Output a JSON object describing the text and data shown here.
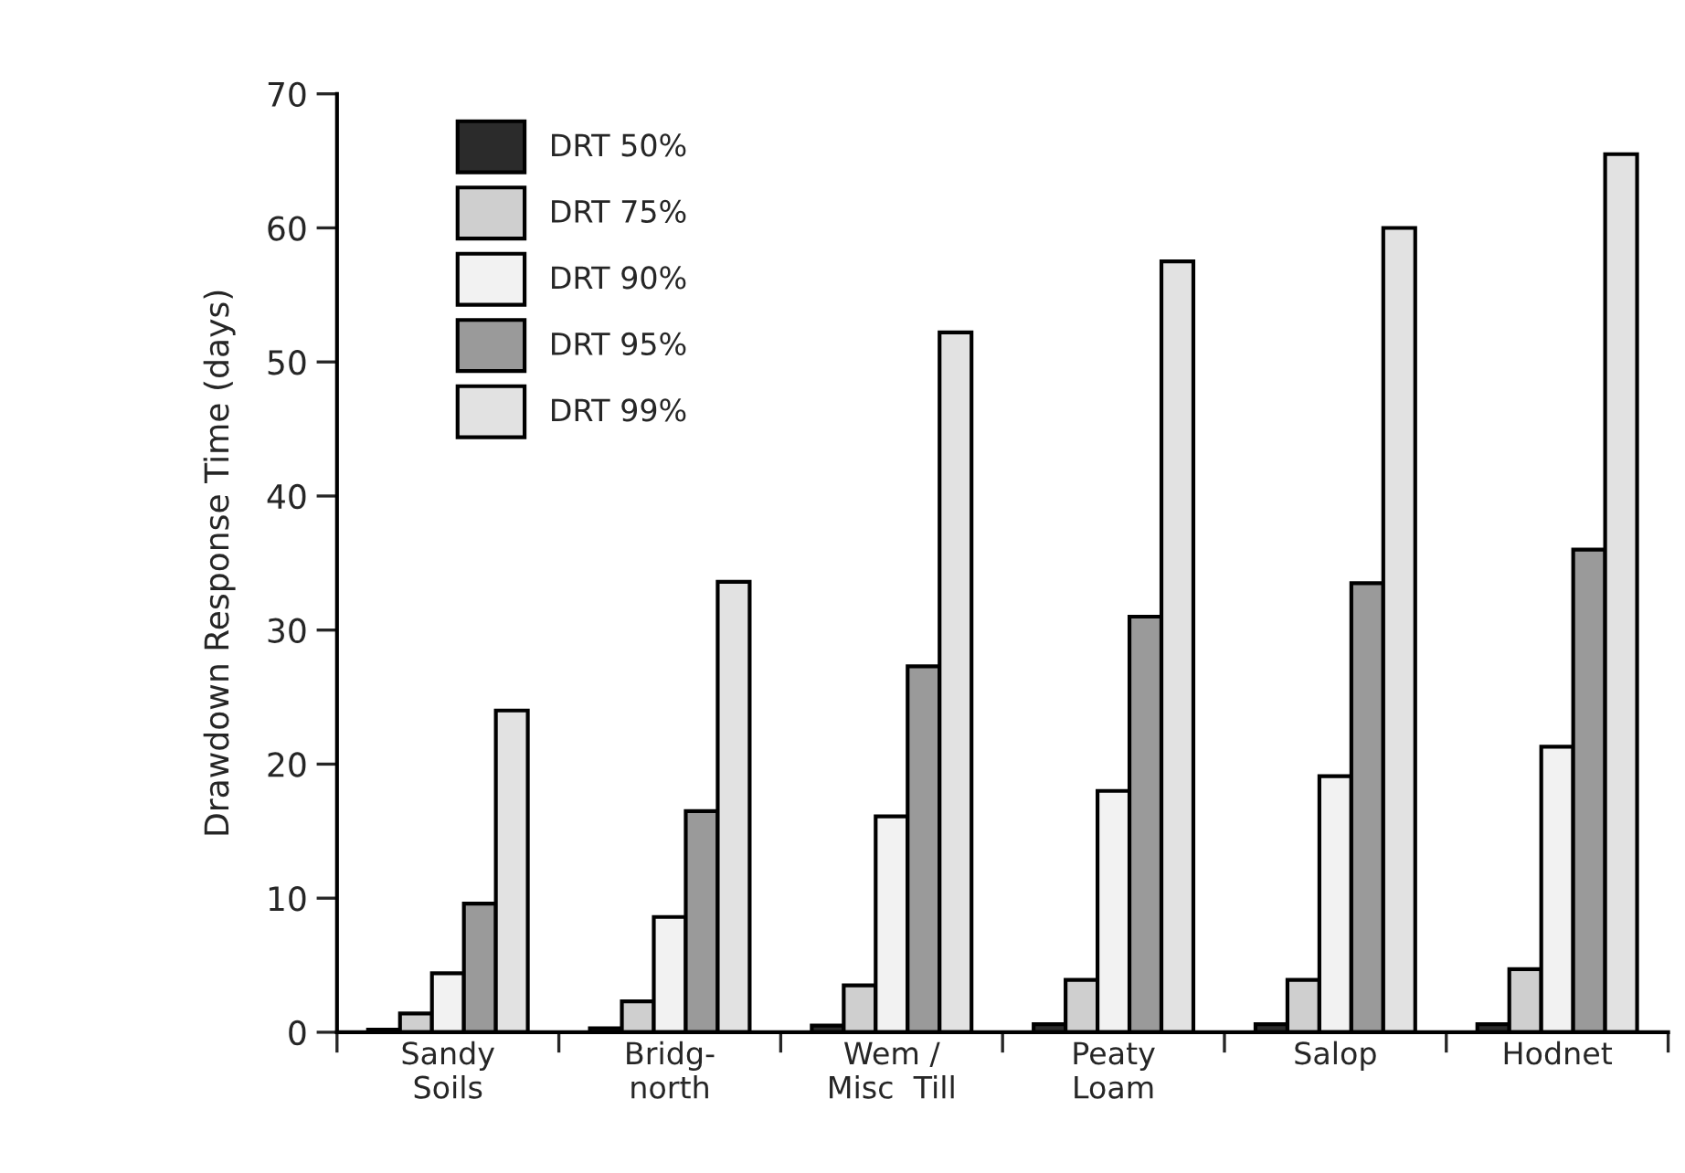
{
  "chart_data": {
    "type": "bar",
    "ylabel": "Drawdown Response Time (days)",
    "categories": [
      "Sandy\nSoils",
      "Bridg-\nnorth",
      "Wem /\nMisc  Till",
      "Peaty\nLoam",
      "Salop",
      "Hodnet"
    ],
    "series": [
      {
        "name": "DRT 50%",
        "color": "#2b2b2b",
        "values": [
          0.2,
          0.3,
          0.5,
          0.6,
          0.6,
          0.6
        ]
      },
      {
        "name": "DRT 75%",
        "color": "#cfcfcf",
        "values": [
          1.4,
          2.3,
          3.5,
          3.9,
          3.9,
          4.7
        ]
      },
      {
        "name": "DRT 90%",
        "color": "#f2f2f2",
        "values": [
          4.4,
          8.6,
          16.1,
          18.0,
          19.1,
          21.3
        ]
      },
      {
        "name": "DRT 95%",
        "color": "#9a9a9a",
        "values": [
          9.6,
          16.5,
          27.3,
          31.0,
          33.5,
          36.0
        ]
      },
      {
        "name": "DRT 99%",
        "color": "#e2e2e2",
        "values": [
          24.0,
          33.6,
          52.2,
          57.5,
          60.0,
          65.5
        ]
      }
    ],
    "ylim": [
      0,
      70
    ],
    "yticks": [
      0,
      10,
      20,
      30,
      40,
      50,
      60,
      70
    ],
    "grid": false,
    "legend": "top left"
  }
}
